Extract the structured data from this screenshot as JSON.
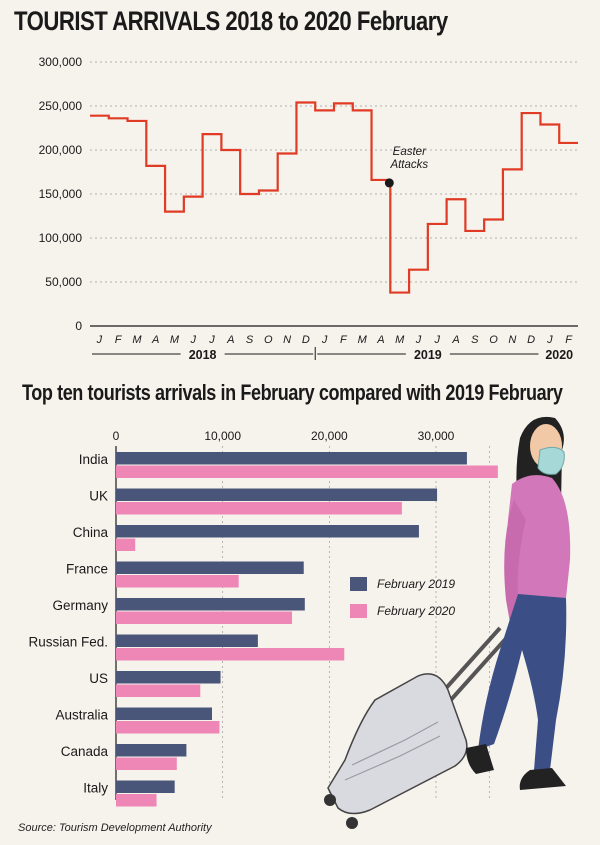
{
  "title": "TOURIST ARRIVALS 2018 to 2020 February",
  "source": "Source: Tourism Development Authority",
  "colors": {
    "line": "#e03b24",
    "series_2019": "#4a557a",
    "series_2020": "#ee86b6",
    "background": "#f6f2ec"
  },
  "illustration": "woman-with-mask-and-suitcase",
  "chart_data": [
    {
      "type": "line",
      "title": "TOURIST ARRIVALS 2018 to 2020 February",
      "ylim": [
        0,
        300000
      ],
      "yticks": [
        "0",
        "50,000",
        "100,000",
        "150,000",
        "200,000",
        "250,000",
        "300,000"
      ],
      "ytick_values": [
        0,
        50000,
        100000,
        150000,
        200000,
        250000,
        300000
      ],
      "x_month_labels": [
        "J",
        "F",
        "M",
        "A",
        "M",
        "J",
        "J",
        "A",
        "S",
        "O",
        "N",
        "D",
        "J",
        "F",
        "M",
        "A",
        "M",
        "J",
        "J",
        "A",
        "S",
        "O",
        "N",
        "D",
        "J",
        "F"
      ],
      "year_labels": [
        "2018",
        "2019",
        "2020"
      ],
      "values": [
        239000,
        236000,
        233000,
        182000,
        130000,
        147000,
        218000,
        200000,
        150000,
        154000,
        196000,
        254000,
        245000,
        253000,
        245000,
        166000,
        38000,
        64000,
        116000,
        144000,
        108000,
        121000,
        178000,
        242000,
        229000,
        208000
      ],
      "annotation": {
        "text_lines": [
          "Easter",
          "Attacks"
        ],
        "index": 15
      }
    },
    {
      "type": "bar",
      "orientation": "horizontal",
      "title": "Top ten tourists arrivals in February compared with 2019 February",
      "categories": [
        "India",
        "UK",
        "China",
        "France",
        "Germany",
        "Russian Fed.",
        "US",
        "Australia",
        "Canada",
        "Italy"
      ],
      "xlim": [
        0,
        36000
      ],
      "xticks": [
        "0",
        "10,000",
        "20,000",
        "30,000"
      ],
      "xtick_values": [
        0,
        10000,
        20000,
        30000
      ],
      "series": [
        {
          "name": "February 2019",
          "values": [
            32900,
            30100,
            28400,
            17600,
            17700,
            13300,
            9800,
            9000,
            6600,
            5500
          ]
        },
        {
          "name": "February 2020",
          "values": [
            35800,
            26800,
            1800,
            11500,
            16500,
            21400,
            7900,
            9700,
            5700,
            3800
          ]
        }
      ]
    }
  ]
}
